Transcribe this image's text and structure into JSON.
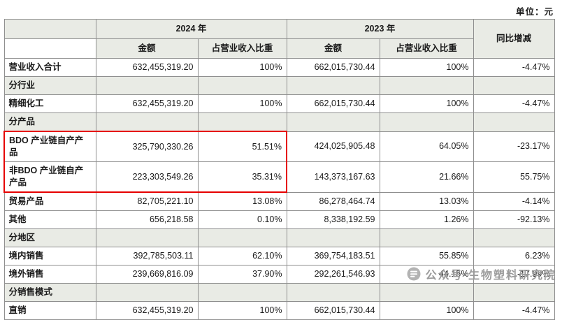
{
  "unit_label": "单位：元",
  "colors": {
    "header_bg": "#e9ebe5",
    "highlight": "#e60000",
    "border": "#8f8f8f"
  },
  "table": {
    "header": {
      "col_2024": "2024 年",
      "col_2023": "2023 年",
      "col_yoy": "同比增减",
      "amount": "金额",
      "ratio": "占营业收入比重"
    },
    "rows": [
      {
        "type": "data",
        "label": "营业收入合计",
        "a2024": "632,455,319.20",
        "r2024": "100%",
        "a2023": "662,015,730.44",
        "r2023": "100%",
        "yoy": "-4.47%"
      },
      {
        "type": "section",
        "label": "分行业"
      },
      {
        "type": "data",
        "label": "精细化工",
        "a2024": "632,455,319.20",
        "r2024": "100%",
        "a2023": "662,015,730.44",
        "r2023": "100%",
        "yoy": "-4.47%"
      },
      {
        "type": "section",
        "label": "分产品"
      },
      {
        "type": "data",
        "label": "BDO 产业链自产产品",
        "a2024": "325,790,330.26",
        "r2024": "51.51%",
        "a2023": "424,025,905.48",
        "r2023": "64.05%",
        "yoy": "-23.17%",
        "hl": "top"
      },
      {
        "type": "data",
        "label": "非BDO 产业链自产产品",
        "a2024": "223,303,549.26",
        "r2024": "35.31%",
        "a2023": "143,373,167.63",
        "r2023": "21.66%",
        "yoy": "55.75%",
        "hl": "bottom"
      },
      {
        "type": "data",
        "label": "贸易产品",
        "a2024": "82,705,221.10",
        "r2024": "13.08%",
        "a2023": "86,278,464.74",
        "r2023": "13.03%",
        "yoy": "-4.14%"
      },
      {
        "type": "data",
        "label": "其他",
        "a2024": "656,218.58",
        "r2024": "0.10%",
        "a2023": "8,338,192.59",
        "r2023": "1.26%",
        "yoy": "-92.13%"
      },
      {
        "type": "section",
        "label": "分地区"
      },
      {
        "type": "data",
        "label": "境内销售",
        "a2024": "392,785,503.11",
        "r2024": "62.10%",
        "a2023": "369,754,183.51",
        "r2023": "55.85%",
        "yoy": "6.23%"
      },
      {
        "type": "data",
        "label": "境外销售",
        "a2024": "239,669,816.09",
        "r2024": "37.90%",
        "a2023": "292,261,546.93",
        "r2023": "44.15%",
        "yoy": "-17.99%"
      },
      {
        "type": "section",
        "label": "分销售模式"
      },
      {
        "type": "data",
        "label": "直销",
        "a2024": "632,455,319.20",
        "r2024": "100%",
        "a2023": "662,015,730.44",
        "r2023": "100%",
        "yoy": "-4.47%"
      }
    ]
  },
  "watermark": {
    "text": "公众号·生物塑料研究院"
  }
}
